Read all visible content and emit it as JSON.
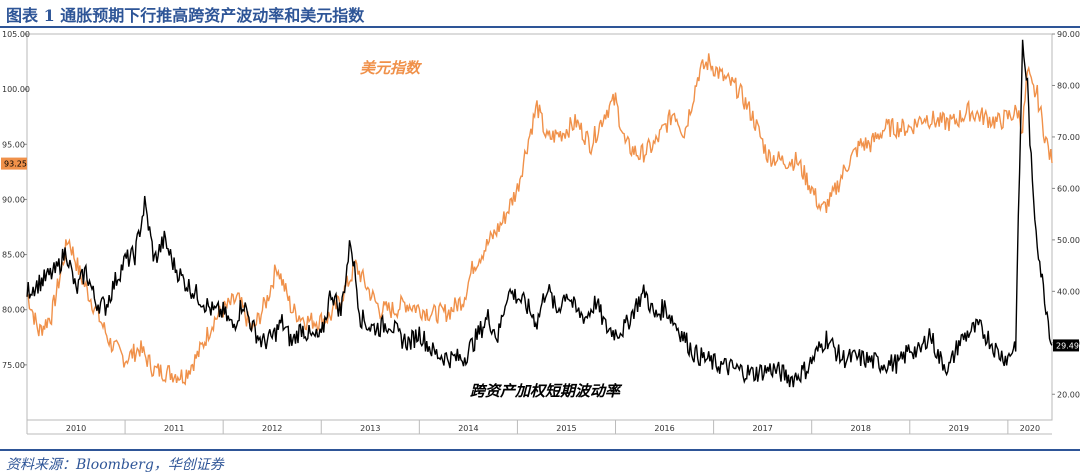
{
  "title": "图表 1 通胀预期下行推高跨资产波动率和美元指数",
  "source": "资料来源：Bloomberg，华创证券",
  "colors": {
    "usd": "#f0914a",
    "vol": "#000000",
    "title": "#2e5597",
    "label_box": "#f0914a"
  },
  "chart_data": {
    "type": "line",
    "left_axis": {
      "min": 70,
      "max": 105,
      "ticks": [
        "75.00",
        "80.00",
        "85.00",
        "90.00",
        "95.00",
        "100.00",
        "105.00"
      ]
    },
    "right_axis": {
      "min": 15,
      "max": 90,
      "ticks": [
        "20.00",
        "30.00",
        "40.00",
        "50.00",
        "60.00",
        "70.00",
        "80.00",
        "90.00"
      ]
    },
    "x_ticks": [
      "2010",
      "2011",
      "2012",
      "2013",
      "2014",
      "2015",
      "2016",
      "2017",
      "2018",
      "2019",
      "2020"
    ],
    "x_range": [
      2010.0,
      2020.45
    ],
    "grid": false,
    "series": [
      {
        "name": "美元指数",
        "axis": "left",
        "x": [
          2010.0,
          2010.12,
          2010.25,
          2010.42,
          2010.55,
          2010.7,
          2010.85,
          2011.0,
          2011.15,
          2011.3,
          2011.45,
          2011.6,
          2011.75,
          2011.9,
          2012.0,
          2012.15,
          2012.3,
          2012.45,
          2012.55,
          2012.7,
          2012.85,
          2013.0,
          2013.1,
          2013.2,
          2013.35,
          2013.5,
          2013.6,
          2013.75,
          2013.85,
          2014.0,
          2014.15,
          2014.3,
          2014.45,
          2014.55,
          2014.7,
          2014.85,
          2015.0,
          2015.1,
          2015.2,
          2015.3,
          2015.45,
          2015.6,
          2015.75,
          2015.9,
          2016.0,
          2016.1,
          2016.25,
          2016.4,
          2016.5,
          2016.6,
          2016.7,
          2016.85,
          2016.95,
          2017.1,
          2017.25,
          2017.4,
          2017.55,
          2017.7,
          2017.85,
          2018.0,
          2018.1,
          2018.2,
          2018.35,
          2018.5,
          2018.6,
          2018.75,
          2018.9,
          2019.0,
          2019.15,
          2019.3,
          2019.45,
          2019.6,
          2019.75,
          2019.9,
          2020.0,
          2020.1,
          2020.15,
          2020.2,
          2020.25,
          2020.3,
          2020.35,
          2020.4,
          2020.45
        ],
        "values": [
          81.5,
          78,
          79.5,
          86.5,
          83,
          80,
          77,
          75.5,
          76.5,
          74.5,
          74.3,
          74,
          76,
          79,
          80,
          81,
          78,
          81,
          84,
          80,
          79,
          79,
          79.5,
          81,
          84,
          81.5,
          80,
          80,
          80.6,
          80.1,
          79.6,
          79.8,
          81,
          84,
          86,
          88,
          91,
          95,
          98.5,
          95.5,
          96,
          97,
          95,
          98,
          99,
          95,
          94,
          95,
          96.5,
          98,
          96,
          101.5,
          102.5,
          101,
          100,
          97.5,
          94,
          93.5,
          93.5,
          91,
          89,
          90,
          93,
          95,
          95,
          96.5,
          96.5,
          96.5,
          97.5,
          97,
          97,
          98,
          97.5,
          97,
          97.5,
          98,
          96.5,
          101.5,
          100,
          99.5,
          97,
          95,
          93.3
        ]
      },
      {
        "name": "跨资产加权短期波动率",
        "axis": "right",
        "x": [
          2010.0,
          2010.15,
          2010.3,
          2010.4,
          2010.5,
          2010.6,
          2010.7,
          2010.8,
          2010.9,
          2011.0,
          2011.1,
          2011.2,
          2011.3,
          2011.4,
          2011.5,
          2011.6,
          2011.7,
          2011.8,
          2011.9,
          2012.0,
          2012.1,
          2012.2,
          2012.3,
          2012.4,
          2012.5,
          2012.6,
          2012.7,
          2012.8,
          2012.9,
          2013.0,
          2013.1,
          2013.2,
          2013.3,
          2013.4,
          2013.5,
          2013.6,
          2013.7,
          2013.8,
          2013.9,
          2014.0,
          2014.15,
          2014.3,
          2014.45,
          2014.55,
          2014.7,
          2014.8,
          2014.9,
          2015.0,
          2015.1,
          2015.2,
          2015.3,
          2015.4,
          2015.5,
          2015.6,
          2015.7,
          2015.8,
          2015.9,
          2016.0,
          2016.1,
          2016.2,
          2016.3,
          2016.4,
          2016.5,
          2016.6,
          2016.7,
          2016.8,
          2016.9,
          2017.0,
          2017.2,
          2017.4,
          2017.6,
          2017.8,
          2017.95,
          2018.05,
          2018.15,
          2018.3,
          2018.5,
          2018.7,
          2018.9,
          2019.0,
          2019.1,
          2019.2,
          2019.3,
          2019.4,
          2019.5,
          2019.6,
          2019.7,
          2019.8,
          2019.9,
          2020.0,
          2020.08,
          2020.12,
          2020.15,
          2020.2,
          2020.25,
          2020.3,
          2020.35,
          2020.4,
          2020.45
        ],
        "values": [
          40,
          42,
          44,
          48,
          40,
          44,
          38,
          37,
          42,
          46,
          47,
          57,
          46,
          50,
          45,
          42,
          40,
          38,
          36,
          36,
          33,
          38,
          33,
          30,
          31,
          34,
          30,
          33,
          31,
          31,
          40,
          36,
          50,
          35,
          33,
          33,
          34,
          31,
          30,
          32,
          28,
          27,
          27,
          30,
          35,
          31,
          40,
          39,
          37,
          34,
          41,
          36,
          40,
          36,
          35,
          38,
          33,
          32,
          33,
          37,
          40,
          35,
          37,
          34,
          31,
          28,
          27,
          26,
          25,
          24,
          25,
          23,
          25,
          28,
          31,
          27,
          27,
          26,
          26,
          29,
          28,
          32,
          27,
          25,
          30,
          32,
          33,
          31,
          28,
          27,
          30,
          64,
          88,
          80,
          60,
          50,
          42,
          36,
          29.5
        ]
      }
    ],
    "series_labels": [
      "美元指数",
      "跨资产加权短期波动率"
    ],
    "last_value_labels": [
      {
        "series": "美元指数",
        "text": "93.25"
      },
      {
        "series": "跨资产加权短期波动率",
        "text": "29.49"
      }
    ]
  }
}
